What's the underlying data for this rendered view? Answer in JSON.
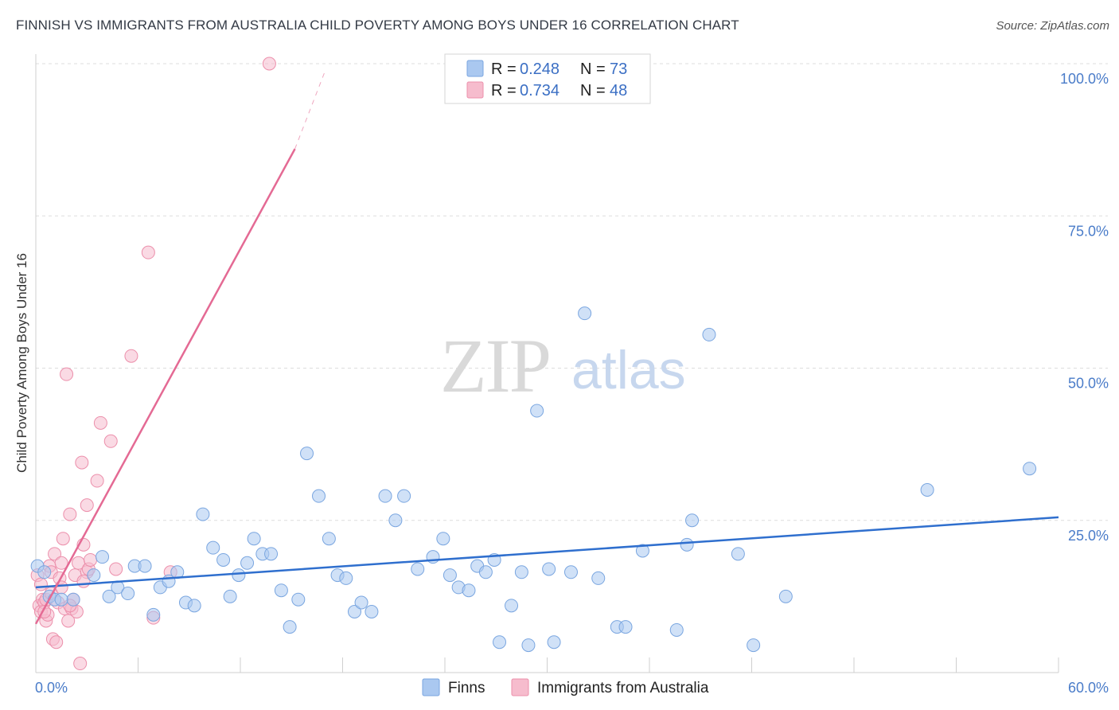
{
  "title": "FINNISH VS IMMIGRANTS FROM AUSTRALIA CHILD POVERTY AMONG BOYS UNDER 16 CORRELATION CHART",
  "source": "Source: ZipAtlas.com",
  "watermark": {
    "zip": "ZIP",
    "atlas": "atlas"
  },
  "colors": {
    "finns_fill": "#aac8f0",
    "finns_stroke": "#7aa6e0",
    "finns_line": "#2f6fce",
    "aus_fill": "#f6bccd",
    "aus_stroke": "#ec8fab",
    "aus_line": "#e46a94",
    "axis_label": "#4a7cc9",
    "grid": "#dddddd"
  },
  "legend": {
    "rows": [
      {
        "r_label": "R =",
        "r_value": "0.248",
        "n_label": "N =",
        "n_value": "73"
      },
      {
        "r_label": "R =",
        "r_value": "0.734",
        "n_label": "N =",
        "n_value": "48"
      }
    ]
  },
  "bottom_legend": {
    "finns": "Finns",
    "aus": "Immigrants from Australia"
  },
  "chart_data": {
    "type": "scatter",
    "title": "FINNISH VS IMMIGRANTS FROM AUSTRALIA CHILD POVERTY AMONG BOYS UNDER 16 CORRELATION CHART",
    "xlabel": "",
    "ylabel": "Child Poverty Among Boys Under 16",
    "xlim": [
      0,
      60
    ],
    "ylim": [
      0,
      100
    ],
    "x_tick_labels": [
      "0.0%",
      "60.0%"
    ],
    "y_tick_labels": [
      "100.0%",
      "75.0%",
      "50.0%",
      "25.0%"
    ],
    "y_gridlines": [
      100,
      75,
      50,
      25
    ],
    "series": [
      {
        "name": "Finns",
        "R": 0.248,
        "N": 73,
        "trend": {
          "x0": 0,
          "y0": 14.0,
          "x1": 60,
          "y1": 25.5
        },
        "points": [
          [
            0.1,
            17.5
          ],
          [
            0.5,
            16.5
          ],
          [
            0.8,
            12.5
          ],
          [
            1.1,
            12.0
          ],
          [
            2.2,
            12.0
          ],
          [
            3.4,
            16.0
          ],
          [
            3.9,
            19.0
          ],
          [
            4.3,
            12.5
          ],
          [
            4.8,
            14.0
          ],
          [
            5.4,
            13.0
          ],
          [
            5.8,
            17.5
          ],
          [
            6.4,
            17.5
          ],
          [
            6.9,
            9.5
          ],
          [
            7.3,
            14.0
          ],
          [
            7.8,
            15.0
          ],
          [
            8.3,
            16.5
          ],
          [
            8.8,
            11.5
          ],
          [
            9.3,
            11.0
          ],
          [
            9.8,
            26.0
          ],
          [
            10.4,
            20.5
          ],
          [
            11.0,
            18.5
          ],
          [
            11.4,
            12.5
          ],
          [
            11.9,
            16.0
          ],
          [
            12.4,
            18.0
          ],
          [
            12.8,
            22.0
          ],
          [
            13.3,
            19.5
          ],
          [
            13.8,
            19.5
          ],
          [
            14.4,
            13.5
          ],
          [
            14.9,
            7.5
          ],
          [
            15.4,
            12.0
          ],
          [
            15.9,
            36.0
          ],
          [
            16.6,
            29.0
          ],
          [
            17.2,
            22.0
          ],
          [
            17.7,
            16.0
          ],
          [
            18.2,
            15.5
          ],
          [
            18.7,
            10.0
          ],
          [
            19.1,
            11.5
          ],
          [
            19.7,
            10.0
          ],
          [
            20.5,
            29.0
          ],
          [
            21.1,
            25.0
          ],
          [
            21.6,
            29.0
          ],
          [
            22.4,
            17.0
          ],
          [
            23.3,
            19.0
          ],
          [
            23.9,
            22.0
          ],
          [
            24.3,
            16.0
          ],
          [
            24.8,
            14.0
          ],
          [
            25.4,
            13.5
          ],
          [
            25.9,
            17.5
          ],
          [
            26.4,
            16.5
          ],
          [
            26.9,
            18.5
          ],
          [
            27.2,
            5.0
          ],
          [
            27.9,
            11.0
          ],
          [
            28.5,
            16.5
          ],
          [
            28.9,
            4.5
          ],
          [
            29.4,
            43.0
          ],
          [
            30.1,
            17.0
          ],
          [
            30.4,
            5.0
          ],
          [
            31.4,
            16.5
          ],
          [
            32.2,
            59.0
          ],
          [
            33.0,
            15.5
          ],
          [
            34.1,
            7.5
          ],
          [
            34.6,
            7.5
          ],
          [
            35.6,
            20.0
          ],
          [
            37.6,
            7.0
          ],
          [
            38.2,
            21.0
          ],
          [
            38.5,
            25.0
          ],
          [
            39.5,
            55.5
          ],
          [
            41.2,
            19.5
          ],
          [
            42.1,
            4.5
          ],
          [
            44.0,
            12.5
          ],
          [
            52.3,
            30.0
          ],
          [
            58.3,
            33.5
          ],
          [
            1.5,
            12.0
          ]
        ]
      },
      {
        "name": "Immigrants from Australia",
        "R": 0.734,
        "N": 48,
        "trend": {
          "x0": 0,
          "y0": 8.0,
          "x1": 15.2,
          "y1": 86.0,
          "dash_x1": 17.0,
          "dash_y1": 99.0
        },
        "points": [
          [
            0.1,
            16.0
          ],
          [
            0.2,
            11.0
          ],
          [
            0.3,
            10.0
          ],
          [
            0.4,
            12.0
          ],
          [
            0.5,
            11.5
          ],
          [
            0.6,
            8.5
          ],
          [
            0.7,
            9.5
          ],
          [
            0.8,
            17.5
          ],
          [
            0.9,
            16.5
          ],
          [
            1.0,
            5.5
          ],
          [
            1.1,
            19.5
          ],
          [
            1.2,
            5.0
          ],
          [
            1.3,
            11.5
          ],
          [
            1.4,
            15.5
          ],
          [
            1.5,
            18.0
          ],
          [
            1.6,
            22.0
          ],
          [
            1.7,
            10.5
          ],
          [
            1.8,
            49.0
          ],
          [
            1.9,
            8.5
          ],
          [
            2.0,
            26.0
          ],
          [
            2.1,
            10.5
          ],
          [
            2.2,
            12.0
          ],
          [
            2.3,
            16.0
          ],
          [
            2.4,
            10.0
          ],
          [
            2.5,
            18.0
          ],
          [
            2.6,
            1.5
          ],
          [
            2.7,
            34.5
          ],
          [
            2.8,
            21.0
          ],
          [
            3.0,
            16.5
          ],
          [
            3.1,
            17.0
          ],
          [
            3.2,
            18.5
          ],
          [
            3.0,
            27.5
          ],
          [
            3.6,
            31.5
          ],
          [
            3.8,
            41.0
          ],
          [
            4.4,
            38.0
          ],
          [
            4.7,
            17.0
          ],
          [
            5.6,
            52.0
          ],
          [
            6.6,
            69.0
          ],
          [
            6.9,
            9.0
          ],
          [
            7.9,
            16.5
          ],
          [
            13.7,
            100.0
          ],
          [
            0.6,
            12.0
          ],
          [
            1.5,
            14.0
          ],
          [
            2.0,
            11.0
          ],
          [
            0.3,
            14.5
          ],
          [
            0.9,
            13.0
          ],
          [
            2.8,
            15.0
          ],
          [
            0.5,
            10.0
          ]
        ]
      }
    ]
  }
}
